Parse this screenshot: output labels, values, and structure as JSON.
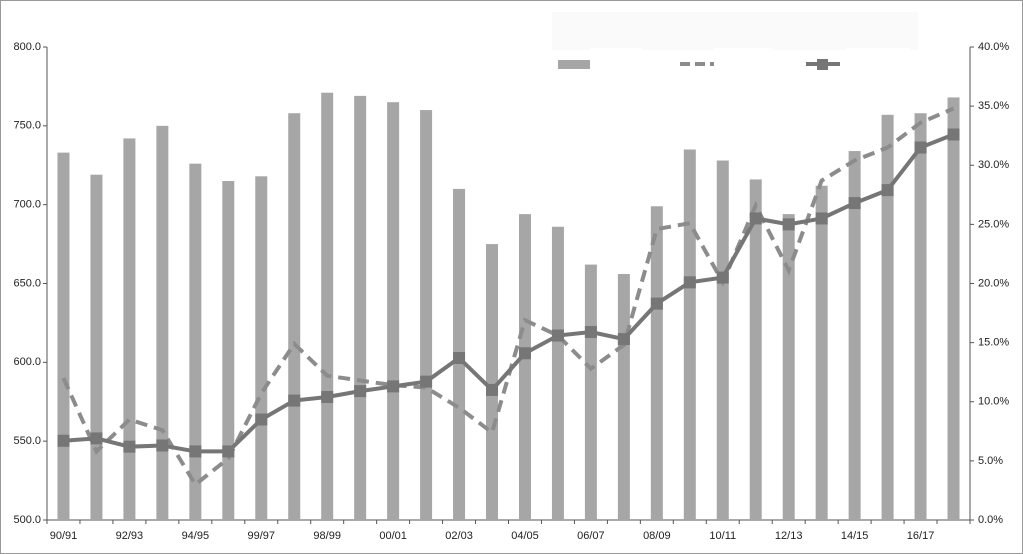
{
  "chart_data": {
    "type": "bar",
    "categories": [
      "90/91",
      null,
      "92/93",
      null,
      "94/95",
      null,
      "99/97",
      null,
      "98/99",
      null,
      "00/01",
      null,
      "02/03",
      null,
      "04/05",
      null,
      "06/07",
      null,
      "08/09",
      null,
      "10/11",
      null,
      "12/13",
      null,
      "14/15",
      null,
      "16/17",
      null
    ],
    "series": [
      {
        "type": "bar",
        "color": "#a6a6a6",
        "values": [
          733,
          719,
          742,
          750,
          726,
          715,
          718,
          758,
          771,
          769,
          765,
          760,
          710,
          675,
          694,
          686,
          662,
          656,
          699,
          735,
          728,
          716,
          694,
          712,
          734,
          757,
          758,
          768
        ]
      },
      {
        "type": "line",
        "axis": "y2",
        "color": "#8c8c8c",
        "dashed": true,
        "values": [
          12.0,
          5.8,
          8.5,
          7.6,
          3.0,
          5.2,
          10.7,
          14.9,
          12.2,
          11.8,
          11.4,
          11.2,
          9.5,
          7.4,
          16.9,
          15.6,
          12.8,
          14.8,
          24.6,
          25.1,
          20.1,
          26.6,
          21.1,
          28.7,
          30.4,
          31.5,
          33.6,
          34.8
        ]
      },
      {
        "type": "line",
        "axis": "y2",
        "color": "#767676",
        "marker": "square",
        "values": [
          6.7,
          6.9,
          6.2,
          6.3,
          5.8,
          5.8,
          8.5,
          10.1,
          10.4,
          10.9,
          11.3,
          11.7,
          13.7,
          11.0,
          14.1,
          15.6,
          15.9,
          15.3,
          18.3,
          20.1,
          20.5,
          25.5,
          25.0,
          25.5,
          26.8,
          27.9,
          31.5,
          32.6
        ]
      }
    ],
    "ylim": [
      500,
      800
    ],
    "yticks": [
      {
        "value": 500,
        "label": "500.0"
      },
      {
        "value": 550,
        "label": "550.0"
      },
      {
        "value": 600,
        "label": "600.0"
      },
      {
        "value": 650,
        "label": "650.0"
      },
      {
        "value": 700,
        "label": "700.0"
      },
      {
        "value": 750,
        "label": "750.0"
      },
      {
        "value": 800,
        "label": "800.0"
      }
    ],
    "y2lim": [
      0,
      40
    ],
    "y2ticks": [
      {
        "value": 0,
        "label": "0.0%"
      },
      {
        "value": 5,
        "label": "5.0%"
      },
      {
        "value": 10,
        "label": "10.0%"
      },
      {
        "value": 15,
        "label": "15.0%"
      },
      {
        "value": 20,
        "label": "20.0%"
      },
      {
        "value": 25,
        "label": "25.0%"
      },
      {
        "value": 30,
        "label": "30.0%"
      },
      {
        "value": 35,
        "label": "35.0%"
      },
      {
        "value": 40,
        "label": "40.0%"
      }
    ]
  }
}
